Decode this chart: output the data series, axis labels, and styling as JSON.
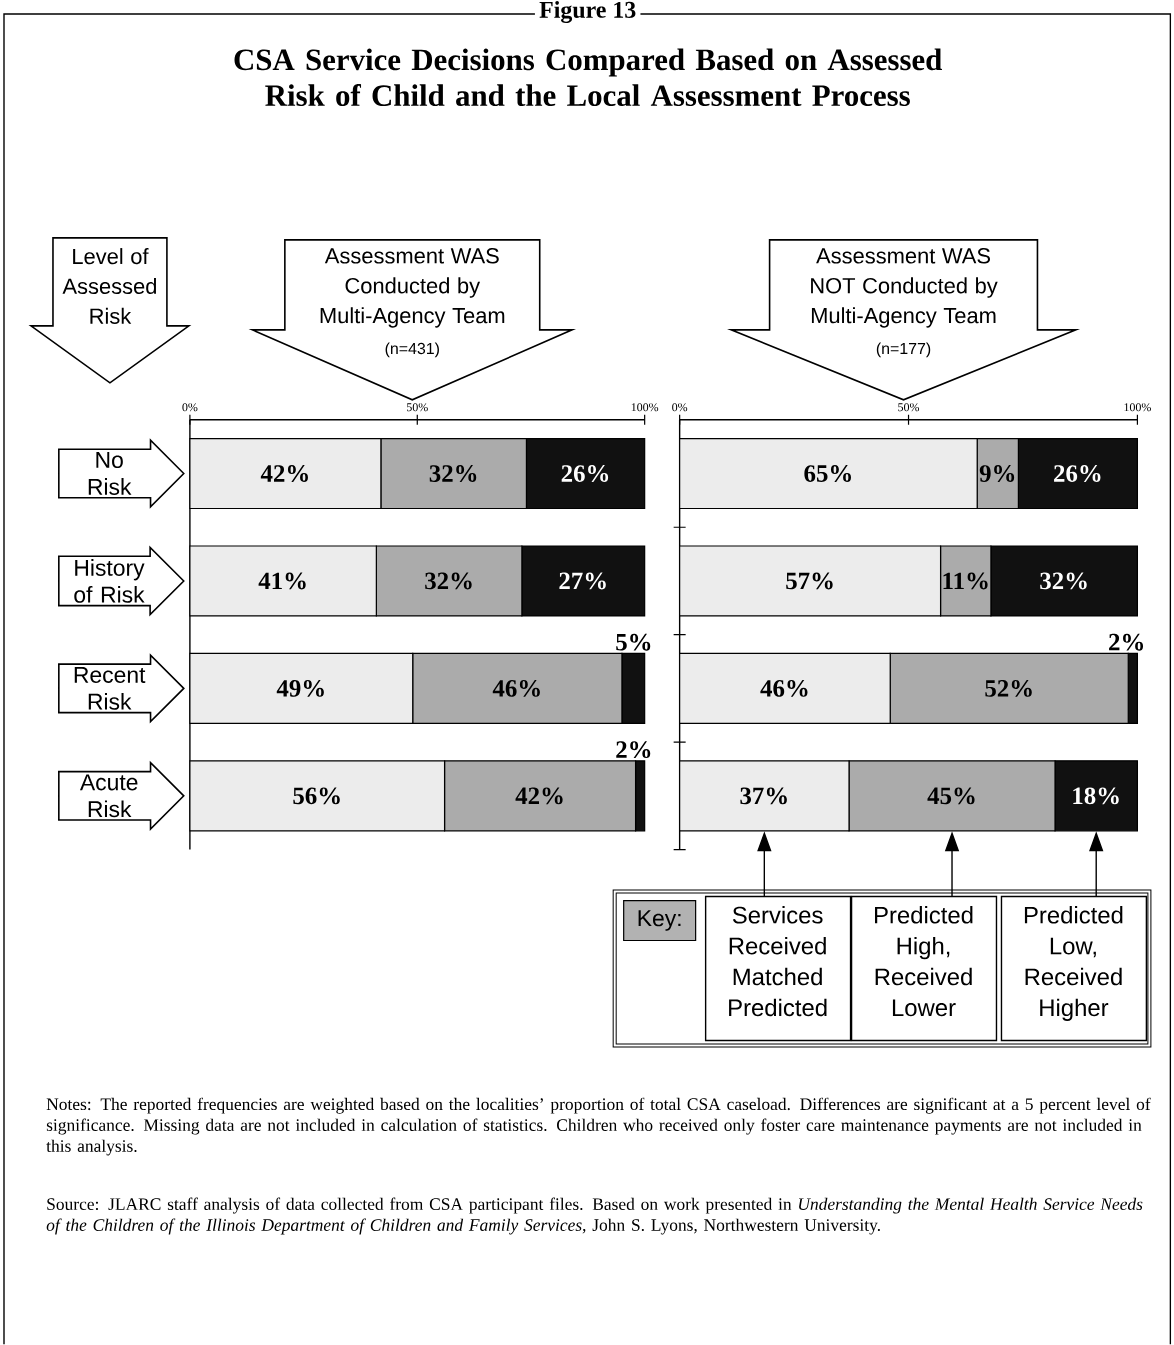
{
  "chart_data": [
    {
      "type": "bar",
      "orientation": "horizontal",
      "stacked": true,
      "title": "Assessment WAS Conducted by Multi-Agency Team",
      "subtitle": "(n=431)",
      "ylabel": "Level of Assessed Risk",
      "categories": [
        "No Risk",
        "History of Risk",
        "Recent Risk",
        "Acute Risk"
      ],
      "xlim": [
        0,
        100
      ],
      "xticks": [
        {
          "value": 0,
          "label": "0%"
        },
        {
          "value": 50,
          "label": "50%"
        },
        {
          "value": 100,
          "label": "100%"
        }
      ],
      "series": [
        {
          "color": "#ececec",
          "values": [
            42,
            41,
            49,
            56
          ],
          "value_labels": [
            "42%",
            "41%",
            "49%",
            "56%"
          ]
        },
        {
          "color": "#ababab",
          "values": [
            32,
            32,
            46,
            42
          ],
          "value_labels": [
            "32%",
            "32%",
            "46%",
            "42%"
          ]
        },
        {
          "color": "#111111",
          "values": [
            26,
            27,
            5,
            2
          ],
          "value_labels": [
            "26%",
            "27%",
            "5%",
            "2%"
          ]
        }
      ],
      "annotations": [
        "Figure 13",
        "CSA Service Decisions Compared Based on Assessed Risk of Child and the Local Assessment Process",
        "Notes: The reported frequencies are weighted based on the localities’ proportion of total CSA caseload. Differences are significant at a 5 percent level of significance. Missing data are not included in calculation of statistics. Children who received only foster care maintenance payments are not included in this analysis.",
        "Source: JLARC staff analysis of data collected from CSA participant files. Based on work presented in *Understanding the Mental Health Service Needs of the Children of the Illinois Department of Children and Family Services*, John S. Lyons, Northwestern University."
      ]
    },
    {
      "type": "bar",
      "orientation": "horizontal",
      "stacked": true,
      "title": "Assessment WAS NOT Conducted by Multi-Agency Team",
      "subtitle": "(n=177)",
      "categories": [
        null,
        null,
        null,
        null
      ],
      "tick_labels": "x",
      "xlim": [
        0,
        100
      ],
      "xticks": [
        {
          "value": 0,
          "label": "0%"
        },
        {
          "value": 50,
          "label": "50%"
        },
        {
          "value": 100,
          "label": "100%"
        }
      ],
      "legend": "bottom",
      "legend_title": "Key:",
      "series": [
        {
          "name": "Services Received Matched Predicted",
          "color": "#ececec",
          "values": [
            65,
            57,
            46,
            37
          ],
          "value_labels": [
            "65%",
            "57%",
            "46%",
            "37%"
          ]
        },
        {
          "name": "Predicted High, Received Lower",
          "color": "#ababab",
          "values": [
            9,
            11,
            52,
            45
          ],
          "value_labels": [
            "9%",
            "11%",
            "52%",
            "45%"
          ]
        },
        {
          "name": "Predicted Low, Received Higher",
          "color": "#111111",
          "values": [
            26,
            32,
            2,
            18
          ],
          "value_labels": [
            "26%",
            "32%",
            "2%",
            "18%"
          ]
        }
      ]
    }
  ]
}
